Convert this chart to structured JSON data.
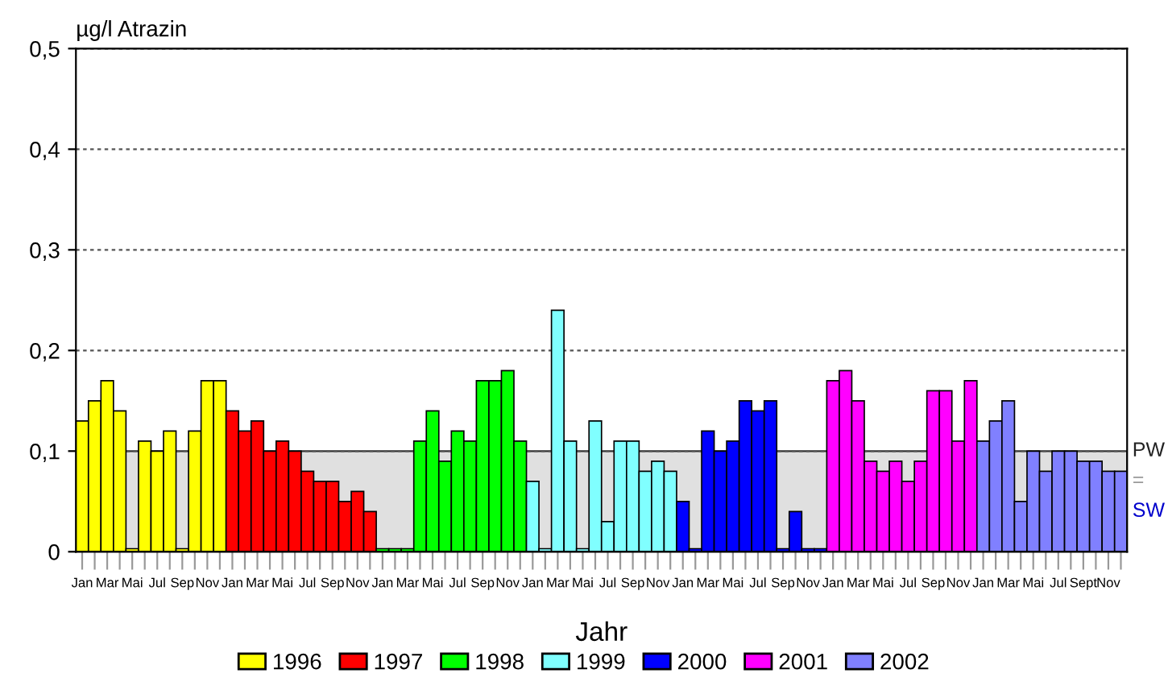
{
  "chart_data": {
    "type": "bar",
    "xlabel": "Jahr",
    "ylabel": "µg/l Atrazin",
    "categories": [
      "Jan",
      null,
      "Mar",
      null,
      "Mai",
      null,
      "Jul",
      null,
      "Sep",
      null,
      "Nov",
      null,
      "Jan",
      null,
      "Mar",
      null,
      "Mai",
      null,
      "Jul",
      null,
      "Sep",
      null,
      "Nov",
      null,
      "Jan",
      null,
      "Mar",
      null,
      "Mai",
      null,
      "Jul",
      null,
      "Sep",
      null,
      "Nov",
      null,
      "Jan",
      null,
      "Mar",
      null,
      "Mai",
      null,
      "Jul",
      null,
      "Sep",
      null,
      "Nov",
      null,
      "Jan",
      null,
      "Mar",
      null,
      "Mai",
      null,
      "Jul",
      null,
      "Sep",
      null,
      "Nov",
      null,
      "Jan",
      null,
      "Mar",
      null,
      "Mai",
      null,
      "Jul",
      null,
      "Sep",
      null,
      "Nov",
      null,
      "Jan",
      null,
      "Mar",
      null,
      "Mai",
      null,
      "Jul",
      null,
      "Sept",
      null,
      "Nov",
      null
    ],
    "series": [
      {
        "name": "1996",
        "color": "#ffff00",
        "values": [
          0.13,
          0.15,
          0.17,
          0.14,
          0.003,
          0.11,
          0.1,
          0.12,
          0.003,
          0.12,
          0.17,
          0.17,
          null,
          null,
          null,
          null,
          null,
          null,
          null,
          null,
          null,
          null,
          null,
          null,
          null,
          null,
          null,
          null,
          null,
          null,
          null,
          null,
          null,
          null,
          null,
          null,
          null,
          null,
          null,
          null,
          null,
          null,
          null,
          null,
          null,
          null,
          null,
          null,
          null,
          null,
          null,
          null,
          null,
          null,
          null,
          null,
          null,
          null,
          null,
          null,
          null,
          null,
          null,
          null,
          null,
          null,
          null,
          null,
          null,
          null,
          null,
          null,
          null,
          null,
          null,
          null,
          null,
          null,
          null,
          null,
          null,
          null,
          null,
          null
        ]
      },
      {
        "name": "1997",
        "color": "#ff0000",
        "values": [
          null,
          null,
          null,
          null,
          null,
          null,
          null,
          null,
          null,
          null,
          null,
          null,
          0.14,
          0.12,
          0.13,
          0.1,
          0.11,
          0.1,
          0.08,
          0.07,
          0.07,
          0.05,
          0.06,
          0.04,
          null,
          null,
          null,
          null,
          null,
          null,
          null,
          null,
          null,
          null,
          null,
          null,
          null,
          null,
          null,
          null,
          null,
          null,
          null,
          null,
          null,
          null,
          null,
          null,
          null,
          null,
          null,
          null,
          null,
          null,
          null,
          null,
          null,
          null,
          null,
          null,
          null,
          null,
          null,
          null,
          null,
          null,
          null,
          null,
          null,
          null,
          null,
          null,
          null,
          null,
          null,
          null,
          null,
          null,
          null,
          null,
          null,
          null,
          null,
          null
        ]
      },
      {
        "name": "1998",
        "color": "#00ff00",
        "values": [
          null,
          null,
          null,
          null,
          null,
          null,
          null,
          null,
          null,
          null,
          null,
          null,
          null,
          null,
          null,
          null,
          null,
          null,
          null,
          null,
          null,
          null,
          null,
          null,
          0.003,
          0.003,
          0.003,
          0.11,
          0.14,
          0.09,
          0.12,
          0.11,
          0.17,
          0.17,
          0.18,
          0.11,
          null,
          null,
          null,
          null,
          null,
          null,
          null,
          null,
          null,
          null,
          null,
          null,
          null,
          null,
          null,
          null,
          null,
          null,
          null,
          null,
          null,
          null,
          null,
          null,
          null,
          null,
          null,
          null,
          null,
          null,
          null,
          null,
          null,
          null,
          null,
          null,
          null,
          null,
          null,
          null,
          null,
          null,
          null,
          null,
          null,
          null,
          null,
          null
        ]
      },
      {
        "name": "1999",
        "color": "#80ffff",
        "values": [
          null,
          null,
          null,
          null,
          null,
          null,
          null,
          null,
          null,
          null,
          null,
          null,
          null,
          null,
          null,
          null,
          null,
          null,
          null,
          null,
          null,
          null,
          null,
          null,
          null,
          null,
          null,
          null,
          null,
          null,
          null,
          null,
          null,
          null,
          null,
          null,
          0.07,
          0.003,
          0.24,
          0.11,
          0.003,
          0.13,
          0.03,
          0.11,
          0.11,
          0.08,
          0.09,
          0.08,
          null,
          null,
          null,
          null,
          null,
          null,
          null,
          null,
          null,
          null,
          null,
          null,
          null,
          null,
          null,
          null,
          null,
          null,
          null,
          null,
          null,
          null,
          null,
          null,
          null,
          null,
          null,
          null,
          null,
          null,
          null,
          null,
          null,
          null,
          null,
          null
        ]
      },
      {
        "name": "2000",
        "color": "#0000ff",
        "values": [
          null,
          null,
          null,
          null,
          null,
          null,
          null,
          null,
          null,
          null,
          null,
          null,
          null,
          null,
          null,
          null,
          null,
          null,
          null,
          null,
          null,
          null,
          null,
          null,
          null,
          null,
          null,
          null,
          null,
          null,
          null,
          null,
          null,
          null,
          null,
          null,
          null,
          null,
          null,
          null,
          null,
          null,
          null,
          null,
          null,
          null,
          null,
          null,
          0.05,
          0.003,
          0.12,
          0.1,
          0.11,
          0.15,
          0.14,
          0.15,
          0.003,
          0.04,
          0.003,
          0.003,
          null,
          null,
          null,
          null,
          null,
          null,
          null,
          null,
          null,
          null,
          null,
          null,
          null,
          null,
          null,
          null,
          null,
          null,
          null,
          null,
          null,
          null,
          null,
          null
        ]
      },
      {
        "name": "2001",
        "color": "#ff00ff",
        "values": [
          null,
          null,
          null,
          null,
          null,
          null,
          null,
          null,
          null,
          null,
          null,
          null,
          null,
          null,
          null,
          null,
          null,
          null,
          null,
          null,
          null,
          null,
          null,
          null,
          null,
          null,
          null,
          null,
          null,
          null,
          null,
          null,
          null,
          null,
          null,
          null,
          null,
          null,
          null,
          null,
          null,
          null,
          null,
          null,
          null,
          null,
          null,
          null,
          null,
          null,
          null,
          null,
          null,
          null,
          null,
          null,
          null,
          null,
          null,
          null,
          0.17,
          0.18,
          0.15,
          0.09,
          0.08,
          0.09,
          0.07,
          0.09,
          0.16,
          0.16,
          0.11,
          0.17,
          null,
          null,
          null,
          null,
          null,
          null,
          null,
          null,
          null,
          null,
          null,
          null
        ]
      },
      {
        "name": "2002",
        "color": "#8080ff",
        "values": [
          null,
          null,
          null,
          null,
          null,
          null,
          null,
          null,
          null,
          null,
          null,
          null,
          null,
          null,
          null,
          null,
          null,
          null,
          null,
          null,
          null,
          null,
          null,
          null,
          null,
          null,
          null,
          null,
          null,
          null,
          null,
          null,
          null,
          null,
          null,
          null,
          null,
          null,
          null,
          null,
          null,
          null,
          null,
          null,
          null,
          null,
          null,
          null,
          null,
          null,
          null,
          null,
          null,
          null,
          null,
          null,
          null,
          null,
          null,
          null,
          null,
          null,
          null,
          null,
          null,
          null,
          null,
          null,
          null,
          null,
          null,
          null,
          0.11,
          0.13,
          0.15,
          0.05,
          0.1,
          0.08,
          0.1,
          0.1,
          0.09,
          0.09,
          0.08,
          0.08
        ]
      }
    ],
    "ylim": [
      0,
      0.5
    ],
    "yticks": [
      0,
      {
        "value": 0.1,
        "label": "0,1"
      },
      {
        "value": 0.2,
        "label": "0,2"
      },
      {
        "value": 0.3,
        "label": "0,3"
      },
      {
        "value": 0.4,
        "label": "0,4"
      },
      {
        "value": 0.5,
        "label": "0,5"
      }
    ],
    "bands": [
      {
        "axis": "y",
        "from": 0,
        "to": 0.1,
        "label": "PW\n=\nSW",
        "color": "#e0e0e0"
      }
    ],
    "grid": "y",
    "legend": "bottom"
  }
}
